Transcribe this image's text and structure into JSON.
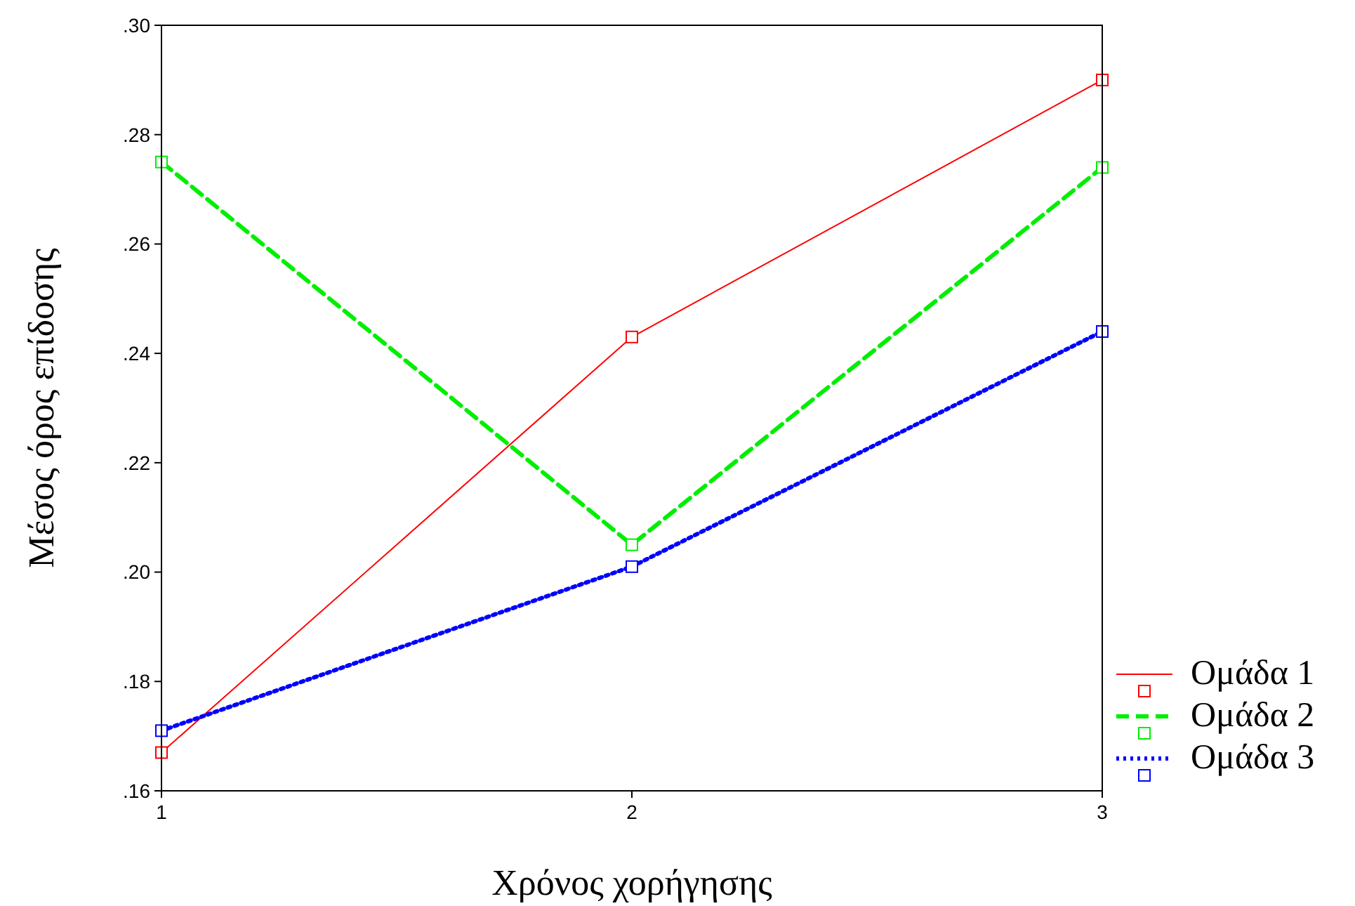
{
  "chart_data": {
    "type": "line",
    "xlabel": "Χρόνος χορήγησης",
    "ylabel": "Μέσος όρος επίδοσης",
    "x": [
      1,
      2,
      3
    ],
    "xlim": [
      1,
      3
    ],
    "xticks": [
      1,
      2,
      3
    ],
    "ylim": [
      0.16,
      0.3
    ],
    "yticks": [
      {
        "value": 0.16,
        "label": ".16"
      },
      {
        "value": 0.18,
        "label": ".18"
      },
      {
        "value": 0.2,
        "label": ".20"
      },
      {
        "value": 0.22,
        "label": ".22"
      },
      {
        "value": 0.24,
        "label": ".24"
      },
      {
        "value": 0.26,
        "label": ".26"
      },
      {
        "value": 0.28,
        "label": ".28"
      },
      {
        "value": 0.3,
        "label": ".30"
      }
    ],
    "marker": "square",
    "legend": "right",
    "grid": false,
    "series": [
      {
        "name": "Ομάδα 1",
        "color": "#ff0000",
        "line_style": "solid",
        "values": [
          0.167,
          0.243,
          0.29
        ]
      },
      {
        "name": "Ομάδα 2",
        "color": "#00ee00",
        "line_style": "dashed",
        "values": [
          0.275,
          0.205,
          0.274
        ]
      },
      {
        "name": "Ομάδα 3",
        "color": "#0000ff",
        "line_style": "dotted",
        "values": [
          0.171,
          0.201,
          0.244
        ]
      }
    ]
  }
}
